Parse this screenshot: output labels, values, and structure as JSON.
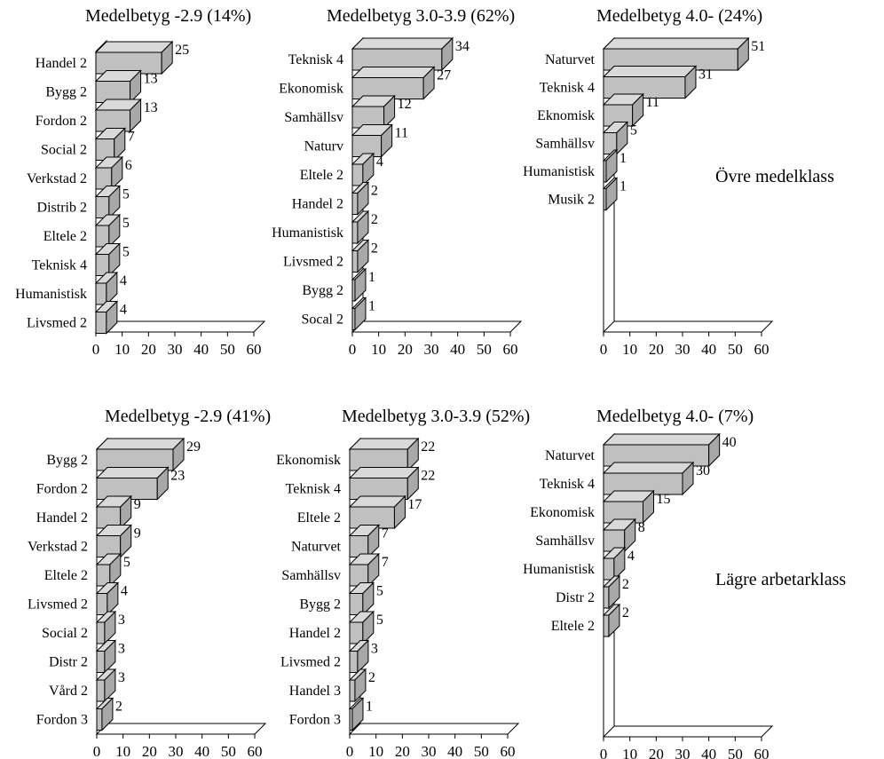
{
  "row_labels": [
    "Övre medelklass",
    "Lägre arbetarklass"
  ],
  "chart_data": [
    {
      "type": "bar",
      "orientation": "horizontal",
      "style": "3d",
      "title": "Medelbetyg -2.9 (14%)",
      "categories": [
        "Handel 2",
        "Bygg 2",
        "Fordon 2",
        "Social 2",
        "Verkstad 2",
        "Distrib 2",
        "Eltele 2",
        "Teknisk 4",
        "Humanistisk",
        "Livsmed 2"
      ],
      "values": [
        25,
        13,
        13,
        7,
        6,
        5,
        5,
        5,
        4,
        4
      ],
      "xlim": [
        0,
        60
      ],
      "xticks": [
        0,
        10,
        20,
        30,
        40,
        50,
        60
      ],
      "bar_color": "#c0c0c0",
      "grid": false,
      "legend": false
    },
    {
      "type": "bar",
      "orientation": "horizontal",
      "style": "3d",
      "title": "Medelbetyg 3.0-3.9 (62%)",
      "categories": [
        "Teknisk 4",
        "Ekonomisk",
        "Samhällsv",
        "Naturv",
        "Eltele 2",
        "Handel 2",
        "Humanistisk",
        "Livsmed 2",
        "Bygg 2",
        "Socal 2"
      ],
      "values": [
        34,
        27,
        12,
        11,
        4,
        2,
        2,
        2,
        1,
        1
      ],
      "xlim": [
        0,
        60
      ],
      "xticks": [
        0,
        10,
        20,
        30,
        40,
        50,
        60
      ],
      "bar_color": "#c0c0c0",
      "grid": false,
      "legend": false
    },
    {
      "type": "bar",
      "orientation": "horizontal",
      "style": "3d",
      "title": "Medelbetyg 4.0- (24%)",
      "categories": [
        "Naturvet",
        "Teknisk 4",
        "Eknomisk",
        "Samhällsv",
        "Humanistisk",
        "Musik 2"
      ],
      "values": [
        51,
        31,
        11,
        5,
        1,
        1
      ],
      "xlim": [
        0,
        60
      ],
      "xticks": [
        0,
        10,
        20,
        30,
        40,
        50,
        60
      ],
      "bar_color": "#c0c0c0",
      "grid": false,
      "legend": false
    },
    {
      "type": "bar",
      "orientation": "horizontal",
      "style": "3d",
      "title": "Medelbetyg -2.9 (41%)",
      "categories": [
        "Bygg 2",
        "Fordon 2",
        "Handel 2",
        "Verkstad 2",
        "Eltele 2",
        "Livsmed 2",
        "Social 2",
        "Distr 2",
        "Vård 2",
        "Fordon 3"
      ],
      "values": [
        29,
        23,
        9,
        9,
        5,
        4,
        3,
        3,
        3,
        2
      ],
      "xlim": [
        0,
        60
      ],
      "xticks": [
        0,
        10,
        20,
        30,
        40,
        50,
        60
      ],
      "bar_color": "#c0c0c0",
      "grid": false,
      "legend": false
    },
    {
      "type": "bar",
      "orientation": "horizontal",
      "style": "3d",
      "title": "Medelbetyg 3.0-3.9 (52%)",
      "categories": [
        "Ekonomisk",
        "Teknisk 4",
        "Eltele 2",
        "Naturvet",
        "Samhällsv",
        "Bygg 2",
        "Handel 2",
        "Livsmed 2",
        "Handel 3",
        "Fordon 3"
      ],
      "values": [
        22,
        22,
        17,
        7,
        7,
        5,
        5,
        3,
        2,
        1
      ],
      "xlim": [
        0,
        60
      ],
      "xticks": [
        0,
        10,
        20,
        30,
        40,
        50,
        60
      ],
      "bar_color": "#c0c0c0",
      "grid": false,
      "legend": false
    },
    {
      "type": "bar",
      "orientation": "horizontal",
      "style": "3d",
      "title": "Medelbetyg 4.0- (7%)",
      "categories": [
        "Naturvet",
        "Teknisk 4",
        "Ekonomisk",
        "Samhällsv",
        "Humanistisk",
        "Distr 2",
        "Eltele 2"
      ],
      "values": [
        40,
        30,
        15,
        8,
        4,
        2,
        2
      ],
      "xlim": [
        0,
        60
      ],
      "xticks": [
        0,
        10,
        20,
        30,
        40,
        50,
        60
      ],
      "bar_color": "#c0c0c0",
      "grid": false,
      "legend": false
    }
  ]
}
